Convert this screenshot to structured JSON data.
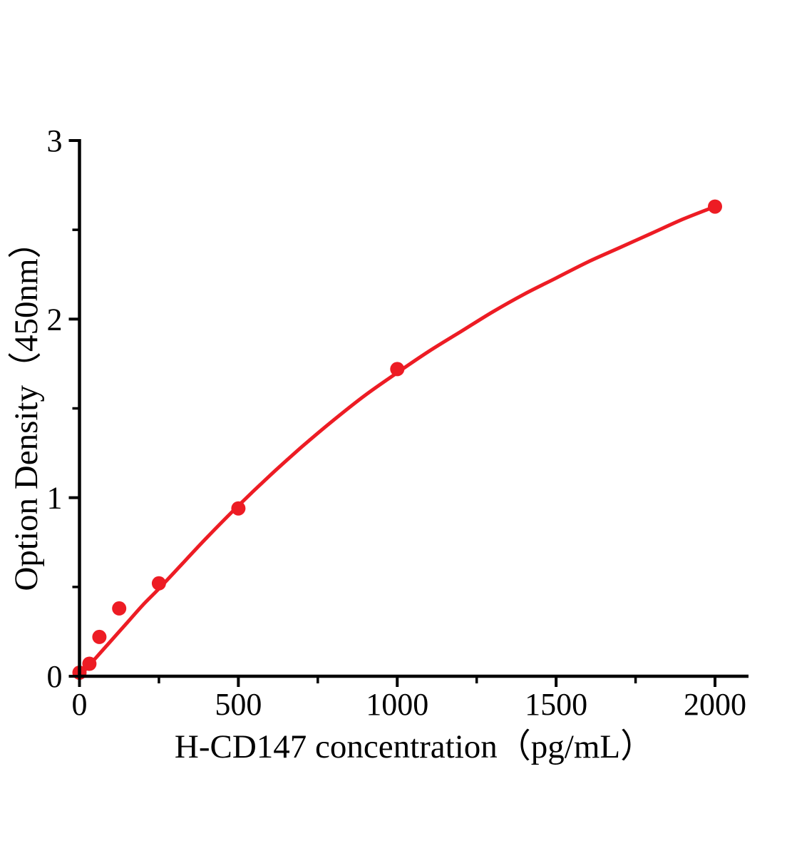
{
  "figure": {
    "background": "#ffffff",
    "axis_color": "#000000",
    "accent_red": "#ED1C24"
  },
  "chart_data": {
    "type": "scatter",
    "title": "",
    "xlabel": "H-CD147 concentration（pg/mL）",
    "ylabel": "Option Density（450nm）",
    "xlim": [
      0,
      2105
    ],
    "ylim": [
      0,
      3
    ],
    "grid": false,
    "legend": null,
    "x_major_ticks": [
      0,
      500,
      1000,
      1500,
      2000
    ],
    "x_minor_ticks": [
      250,
      750,
      1250,
      1750
    ],
    "y_major_ticks": [
      0,
      1,
      2,
      3
    ],
    "y_minor_ticks": [
      0.5,
      1.5,
      2.5
    ],
    "marker": "circle",
    "point_color": "#ED1C24",
    "curve_color": "#ED1C24",
    "points": [
      {
        "x": 0,
        "y": 0.02
      },
      {
        "x": 31.25,
        "y": 0.07
      },
      {
        "x": 62.5,
        "y": 0.22
      },
      {
        "x": 125,
        "y": 0.38
      },
      {
        "x": 250,
        "y": 0.52
      },
      {
        "x": 500,
        "y": 0.94
      },
      {
        "x": 1000,
        "y": 1.72
      },
      {
        "x": 2000,
        "y": 2.63
      }
    ],
    "fit_curve": [
      [
        0,
        0.0
      ],
      [
        50,
        0.1
      ],
      [
        100,
        0.2
      ],
      [
        150,
        0.3
      ],
      [
        200,
        0.4
      ],
      [
        250,
        0.49
      ],
      [
        300,
        0.585
      ],
      [
        400,
        0.775
      ],
      [
        500,
        0.955
      ],
      [
        600,
        1.125
      ],
      [
        700,
        1.285
      ],
      [
        800,
        1.435
      ],
      [
        900,
        1.575
      ],
      [
        1000,
        1.7
      ],
      [
        1100,
        1.82
      ],
      [
        1200,
        1.93
      ],
      [
        1300,
        2.04
      ],
      [
        1400,
        2.14
      ],
      [
        1500,
        2.23
      ],
      [
        1600,
        2.32
      ],
      [
        1700,
        2.4
      ],
      [
        1800,
        2.48
      ],
      [
        1900,
        2.56
      ],
      [
        2000,
        2.63
      ]
    ]
  }
}
